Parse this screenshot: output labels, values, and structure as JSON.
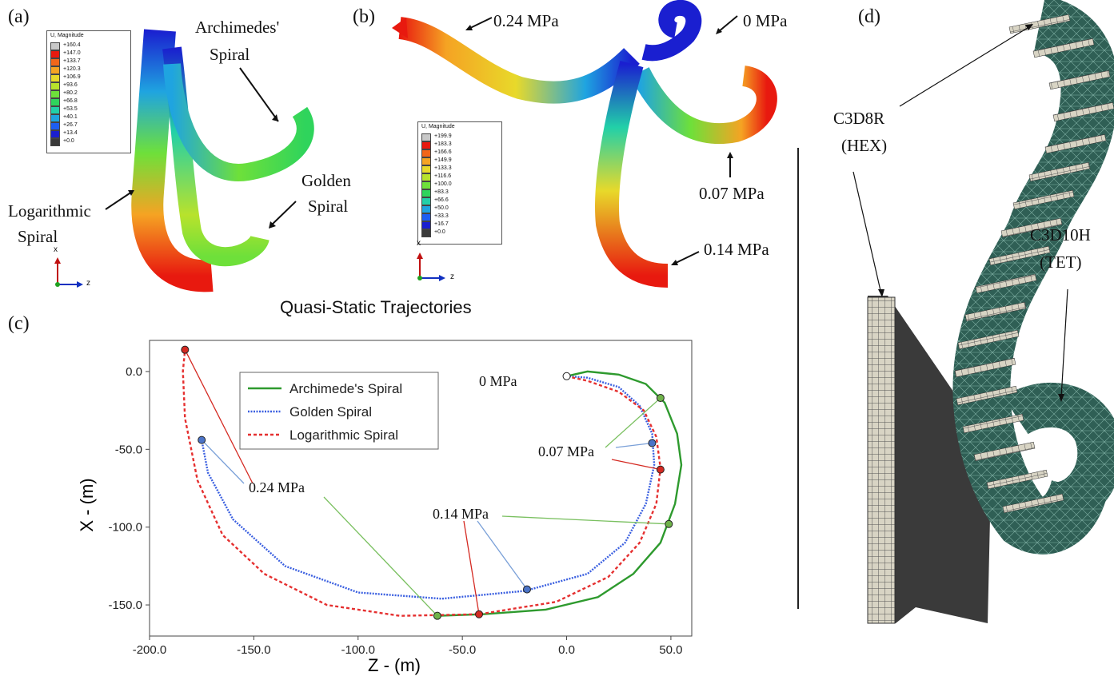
{
  "panels": {
    "a": {
      "tag": "(a)",
      "legend_title": "U, Magnitude",
      "legend_values": [
        "+160.4",
        "+147.0",
        "+133.7",
        "+120.3",
        "+106.9",
        "+93.6",
        "+80.2",
        "+66.8",
        "+53.5",
        "+40.1",
        "+26.7",
        "+13.4",
        "+0.0"
      ],
      "labels": {
        "archimedes_1": "Archimedes'",
        "archimedes_2": "Spiral",
        "golden_1": "Golden",
        "golden_2": "Spiral",
        "log_1": "Logarithmic",
        "log_2": "Spiral"
      },
      "axis_x": "x",
      "axis_z": "z"
    },
    "b": {
      "tag": "(b)",
      "legend_title": "U, Magnitude",
      "legend_values": [
        "+199.9",
        "+183.3",
        "+166.6",
        "+149.9",
        "+133.3",
        "+116.6",
        "+100.0",
        "+83.3",
        "+66.6",
        "+50.0",
        "+33.3",
        "+16.7",
        "+0.0"
      ],
      "labels": {
        "p024": "0.24 MPa",
        "p0": "0 MPa",
        "p007": "0.07 MPa",
        "p014": "0.14 MPa"
      },
      "axis_x": "x",
      "axis_z": "z"
    },
    "c": {
      "tag": "(c)",
      "annotations": {
        "p0": "0 MPa",
        "p007": "0.07 MPa",
        "p014": "0.14 MPa",
        "p024": "0.24 MPa"
      }
    },
    "d": {
      "tag": "(d)",
      "labels": {
        "hex_1": "C3D8R",
        "hex_2": "(HEX)",
        "tet_1": "C3D10H",
        "tet_2": "(TET)"
      }
    }
  },
  "legend_colors": [
    "#c8c8c8",
    "#e8190f",
    "#f2661a",
    "#f5a323",
    "#e8d92a",
    "#b8e22c",
    "#6ee03a",
    "#2fd45c",
    "#22d0a8",
    "#1fa4e0",
    "#1d5ef2",
    "#1a1fd0",
    "#3a3a3a"
  ],
  "chart_data": {
    "type": "line",
    "title": "Quasi-Static Trajectories",
    "xlabel": "Z - (m)",
    "ylabel": "X - (m)",
    "xlim": [
      -200,
      60
    ],
    "ylim": [
      -170,
      20
    ],
    "xticks": [
      "-200.0",
      "-150.0",
      "-100.0",
      "-50.0",
      "0.0",
      "50.0"
    ],
    "yticks": [
      "0.0",
      "-50.0",
      "-100.0",
      "-150.0"
    ],
    "legend_position": "top-left",
    "grid": false,
    "series": [
      {
        "name": "Archimede's Spiral",
        "color": "#2e9a2e",
        "style": "solid",
        "points": [
          [
            0,
            -3
          ],
          [
            10,
            0
          ],
          [
            25,
            -2
          ],
          [
            38,
            -8
          ],
          [
            47,
            -20
          ],
          [
            53,
            -40
          ],
          [
            55,
            -60
          ],
          [
            52,
            -85
          ],
          [
            45,
            -110
          ],
          [
            32,
            -130
          ],
          [
            15,
            -145
          ],
          [
            -10,
            -153
          ],
          [
            -40,
            -156
          ],
          [
            -62,
            -157
          ]
        ]
      },
      {
        "name": "Golden Spiral",
        "color": "#3a5fe0",
        "style": "dotted",
        "points": [
          [
            0,
            -3
          ],
          [
            10,
            -4
          ],
          [
            25,
            -10
          ],
          [
            35,
            -22
          ],
          [
            41,
            -40
          ],
          [
            42,
            -60
          ],
          [
            38,
            -85
          ],
          [
            28,
            -110
          ],
          [
            10,
            -130
          ],
          [
            -20,
            -141
          ],
          [
            -60,
            -146
          ],
          [
            -100,
            -142
          ],
          [
            -135,
            -125
          ],
          [
            -160,
            -95
          ],
          [
            -172,
            -65
          ],
          [
            -175,
            -44
          ]
        ]
      },
      {
        "name": "Logarithmic Spiral",
        "color": "#e53030",
        "style": "dashed",
        "points": [
          [
            0,
            -3
          ],
          [
            10,
            -6
          ],
          [
            25,
            -13
          ],
          [
            37,
            -25
          ],
          [
            43,
            -42
          ],
          [
            45,
            -62
          ],
          [
            43,
            -85
          ],
          [
            35,
            -110
          ],
          [
            20,
            -132
          ],
          [
            -5,
            -148
          ],
          [
            -42,
            -156
          ],
          [
            -80,
            -157
          ],
          [
            -115,
            -150
          ],
          [
            -145,
            -130
          ],
          [
            -165,
            -105
          ],
          [
            -177,
            -70
          ],
          [
            -183,
            -30
          ],
          [
            -184,
            0
          ],
          [
            -183,
            14
          ]
        ]
      }
    ],
    "markers": [
      {
        "series": "Archimede's Spiral",
        "points": [
          [
            45,
            -17
          ],
          [
            49,
            -98
          ],
          [
            -62,
            -157
          ]
        ]
      },
      {
        "series": "Golden Spiral",
        "points": [
          [
            41,
            -46
          ],
          [
            -19,
            -140
          ],
          [
            -175,
            -44
          ]
        ]
      },
      {
        "series": "Logarithmic Spiral",
        "points": [
          [
            45,
            -63
          ],
          [
            -42,
            -156
          ],
          [
            -183,
            14
          ]
        ]
      },
      {
        "series": "start",
        "points": [
          [
            0,
            -3
          ]
        ]
      }
    ]
  }
}
